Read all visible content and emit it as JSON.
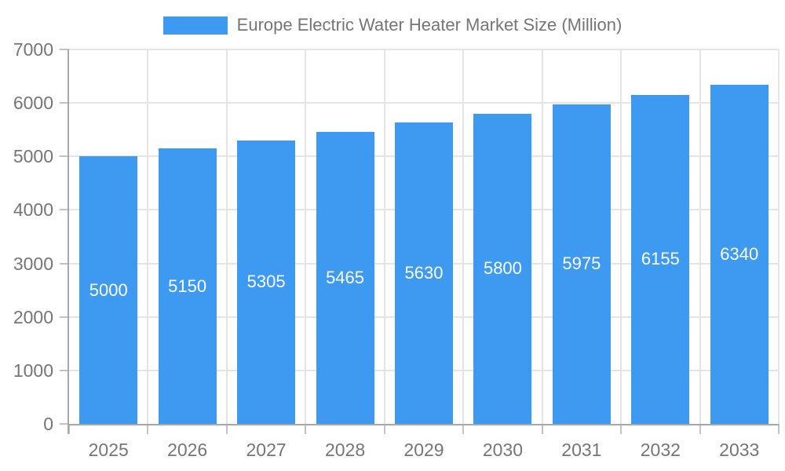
{
  "legend": {
    "label": "Europe Electric Water Heater Market Size (Million)"
  },
  "chart_data": {
    "type": "bar",
    "title": "Europe Electric Water Heater Market Size (Million)",
    "series_name": "Europe Electric Water Heater Market Size (Million)",
    "categories": [
      "2025",
      "2026",
      "2027",
      "2028",
      "2029",
      "2030",
      "2031",
      "2032",
      "2033"
    ],
    "values": [
      5000,
      5150,
      5305,
      5465,
      5630,
      5800,
      5975,
      6155,
      6340
    ],
    "xlabel": "",
    "ylabel": "",
    "ylim": [
      0,
      7000
    ],
    "yticks": [
      0,
      1000,
      2000,
      3000,
      4000,
      5000,
      6000,
      7000
    ],
    "grid": true,
    "legend_position": "top",
    "value_label_position": "inside-middle",
    "colors": {
      "bar": "#3D9AF0",
      "value_label": "#FFFFFF",
      "axis_text": "#757575",
      "legend_text": "#757575",
      "axis_line": "#A8A8A8",
      "tick_line": "#C2C2C2",
      "gridline": "#E4E4E4",
      "background": "#FFFFFF"
    }
  }
}
